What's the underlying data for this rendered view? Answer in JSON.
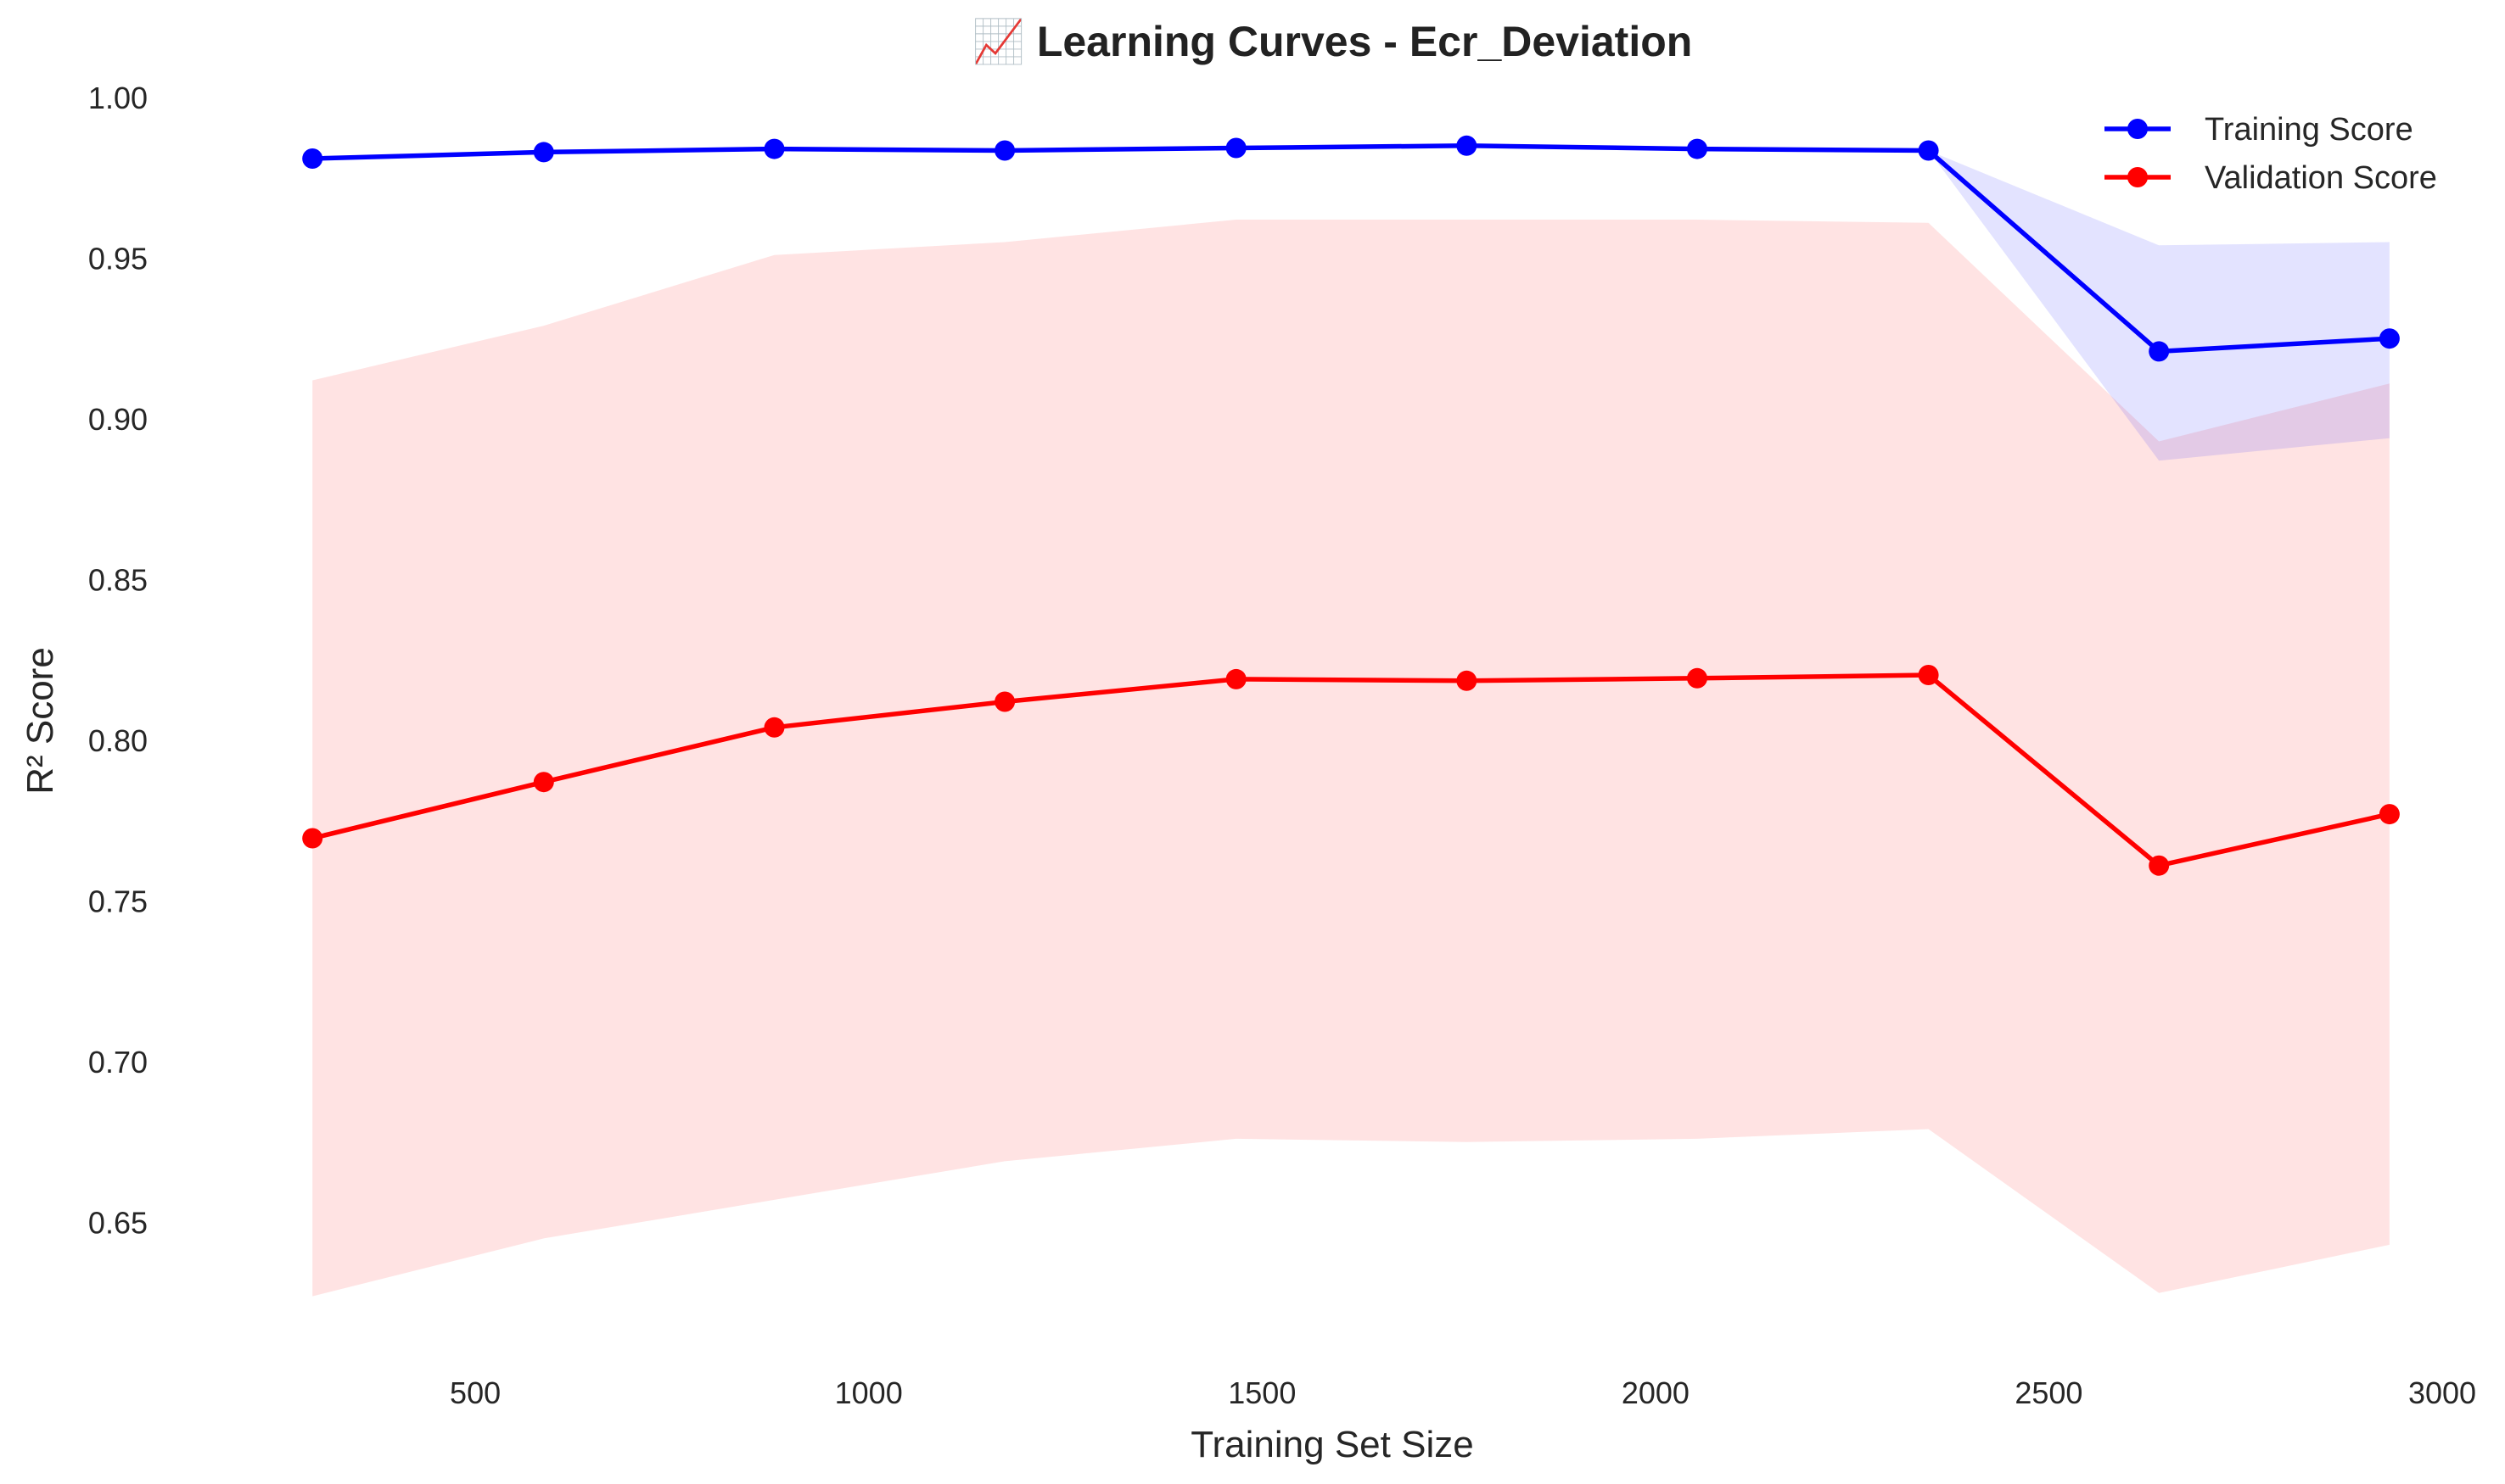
{
  "chart_data": {
    "type": "line",
    "title": "📈 Learning Curves - Ecr_Deviation",
    "xlabel": "Training Set Size",
    "ylabel": "R² Score",
    "xlim": [
      200,
      3000
    ],
    "ylim": [
      0.61,
      1.0
    ],
    "x_ticks": [
      500,
      1000,
      1500,
      2000,
      2500,
      3000
    ],
    "y_ticks": [
      0.65,
      0.7,
      0.75,
      0.8,
      0.85,
      0.9,
      0.95,
      1.0
    ],
    "x_tick_labels": [
      "500",
      "1000",
      "1500",
      "2000",
      "2500",
      "3000"
    ],
    "y_tick_labels": [
      "0.65",
      "0.70",
      "0.75",
      "0.80",
      "0.85",
      "0.90",
      "0.95",
      "1.00"
    ],
    "grid": false,
    "legend_position": "top-right",
    "x": [
      293,
      587,
      880,
      1173,
      1467,
      1760,
      2053,
      2347,
      2640,
      2933
    ],
    "series": [
      {
        "name": "Training Score",
        "color": "#0000ff",
        "band_color": "#0000ff",
        "values": [
          0.981,
          0.983,
          0.984,
          0.9835,
          0.9843,
          0.985,
          0.984,
          0.9835,
          0.921,
          0.925
        ],
        "upper": [
          0.981,
          0.983,
          0.984,
          0.9835,
          0.9843,
          0.985,
          0.984,
          0.9835,
          0.954,
          0.955
        ],
        "lower": [
          0.981,
          0.983,
          0.984,
          0.9835,
          0.9843,
          0.985,
          0.984,
          0.9835,
          0.887,
          0.894
        ]
      },
      {
        "name": "Validation Score",
        "color": "#ff0000",
        "band_color": "#ff0000",
        "values": [
          0.7695,
          0.787,
          0.804,
          0.812,
          0.819,
          0.8185,
          0.8193,
          0.8203,
          0.761,
          0.777
        ],
        "upper": [
          0.912,
          0.929,
          0.951,
          0.955,
          0.962,
          0.962,
          0.962,
          0.961,
          0.893,
          0.911
        ],
        "lower": [
          0.627,
          0.645,
          0.657,
          0.669,
          0.676,
          0.675,
          0.676,
          0.679,
          0.628,
          0.643
        ]
      }
    ]
  }
}
